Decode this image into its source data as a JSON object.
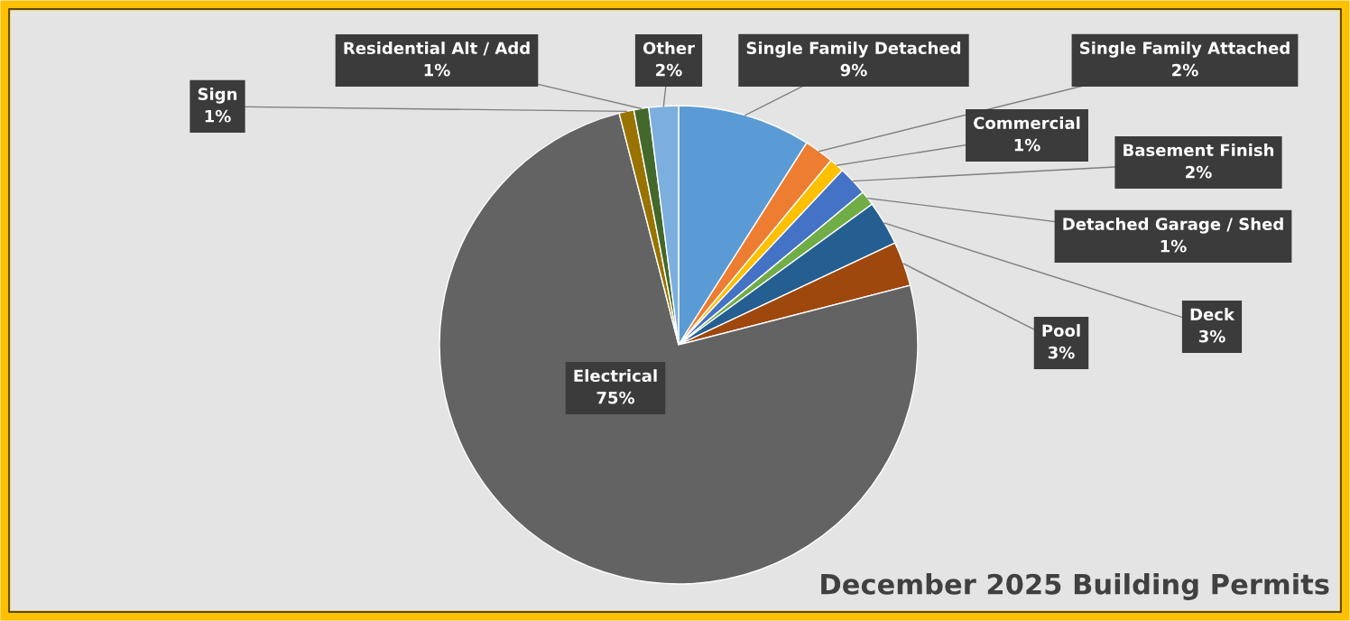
{
  "chart_data": {
    "type": "pie",
    "title": "December 2025 Building Permits",
    "categories": [
      "Single Family Detached",
      "Single Family Attached",
      "Commercial",
      "Basement Finish",
      "Detached Garage / Shed",
      "Deck",
      "Pool",
      "Electrical",
      "Sign",
      "Residential Alt / Add",
      "Other"
    ],
    "values": [
      9,
      2,
      1,
      2,
      1,
      3,
      3,
      75,
      1,
      1,
      2
    ],
    "colors": [
      "#5b9bd5",
      "#ed7d31",
      "#ffc000",
      "#4472c4",
      "#70ad47",
      "#255e91",
      "#9e480e",
      "#636363",
      "#997300",
      "#43682b",
      "#7cafdd"
    ],
    "value_labels": [
      "9%",
      "2%",
      "1%",
      "2%",
      "1%",
      "3%",
      "3%",
      "75%",
      "1%",
      "1%",
      "2%"
    ],
    "legend": false
  }
}
